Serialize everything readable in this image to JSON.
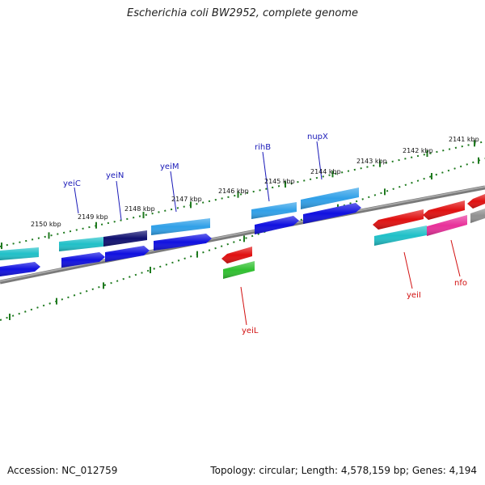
{
  "title": "Escherichia coli BW2952, complete genome",
  "accession_text": "Accession: NC_012759",
  "stats_text": "Topology: circular; Length: 4,578,159 bp; Genes: 4,194",
  "tick_labels": [
    "2150 kbp",
    "2149 kbp",
    "2148 kbp",
    "2147 kbp",
    "2146 kbp",
    "2145 kbp",
    "2144 kbp",
    "2143 kbp",
    "2142 kbp",
    "2141 kbp"
  ],
  "gene_labels": {
    "yeiC": "yeiC",
    "yeiN": "yeiN",
    "yeiM": "yeiM",
    "rihB": "rihB",
    "nupX": "nupX",
    "yeiL": "yeiL",
    "yeiI": "yeiI",
    "nfo": "nfo"
  },
  "colors": {
    "backbone": "#8a8a8a",
    "tick": "#1f7a1f",
    "blue": "#1010e0",
    "navy": "#101070",
    "cyan": "#20c0c8",
    "lightblue": "#30a0e8",
    "red": "#e01010",
    "green": "#30c030",
    "magenta": "#e8309a",
    "gray": "#909090",
    "label_blue": "#1a1ab8",
    "label_red": "#d21010"
  }
}
